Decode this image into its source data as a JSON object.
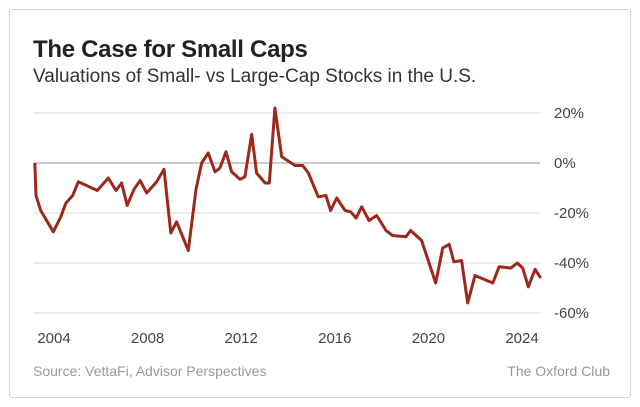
{
  "header": {
    "title": "The Case for Small Caps",
    "subtitle": "Valuations of Small- vs Large-Cap Stocks in the U.S."
  },
  "footer": {
    "source": "Source: VettaFi, Advisor Perspectives",
    "brand": "The Oxford Club"
  },
  "chart_data": {
    "type": "line",
    "title": "The Case for Small Caps",
    "subtitle": "Valuations of Small- vs Large-Cap Stocks in the U.S.",
    "xlabel": "",
    "ylabel": "",
    "xlim": [
      2003.2,
      2024.8
    ],
    "ylim": [
      -60,
      20
    ],
    "x_ticks": [
      2004,
      2008,
      2012,
      2016,
      2020,
      2024
    ],
    "x_tick_labels": [
      "2004",
      "2008",
      "2012",
      "2016",
      "2020",
      "2024"
    ],
    "y_ticks": [
      20,
      0,
      -20,
      -40,
      -60
    ],
    "y_tick_labels": [
      "20%",
      "0%",
      "-20%",
      "-40%",
      "-60%"
    ],
    "y_axis_side": "right",
    "grid": true,
    "line_color": "#9b2a1c",
    "series": [
      {
        "x": [
          2003.18,
          2003.23,
          2003.43,
          2003.97,
          2004.29,
          2004.51,
          2004.8,
          2005.04,
          2005.85,
          2006.32,
          2006.65,
          2006.89,
          2007.13,
          2007.42,
          2007.68,
          2007.96,
          2008.39,
          2008.7,
          2008.99,
          2009.24,
          2009.74,
          2010.07,
          2010.31,
          2010.59,
          2010.88,
          2011.09,
          2011.35,
          2011.59,
          2011.95,
          2012.16,
          2012.45,
          2012.66,
          2013.02,
          2013.2,
          2013.44,
          2013.73,
          2014.3,
          2014.63,
          2014.87,
          2015.29,
          2015.62,
          2015.82,
          2016.08,
          2016.44,
          2016.68,
          2016.91,
          2017.15,
          2017.46,
          2017.79,
          2018.19,
          2018.47,
          2019.04,
          2019.24,
          2019.71,
          2020.31,
          2020.61,
          2020.89,
          2021.09,
          2021.42,
          2021.68,
          2021.99,
          2022.75,
          2023.02,
          2023.52,
          2023.8,
          2024.03,
          2024.27,
          2024.56,
          2024.8
        ],
        "y": [
          0,
          -13,
          -19,
          -27.5,
          -21.5,
          -16,
          -13,
          -7.5,
          -11,
          -6,
          -11,
          -8,
          -17,
          -10.5,
          -7,
          -12,
          -7.5,
          -2.5,
          -28,
          -23.5,
          -35,
          -10.5,
          0,
          4,
          -3.5,
          -2,
          4.5,
          -3.5,
          -6.5,
          -5.5,
          11.5,
          -4,
          -8,
          -8,
          22,
          2.5,
          -1,
          -1,
          -4,
          -13.5,
          -13,
          -19,
          -14,
          -19,
          -19.5,
          -22,
          -17.5,
          -23,
          -21,
          -27,
          -29,
          -29.5,
          -27,
          -31,
          -48,
          -34,
          -32.5,
          -39.5,
          -39,
          -56,
          -45,
          -48,
          -41.5,
          -42,
          -40,
          -42,
          -49.5,
          -42.5,
          -46
        ]
      }
    ]
  }
}
